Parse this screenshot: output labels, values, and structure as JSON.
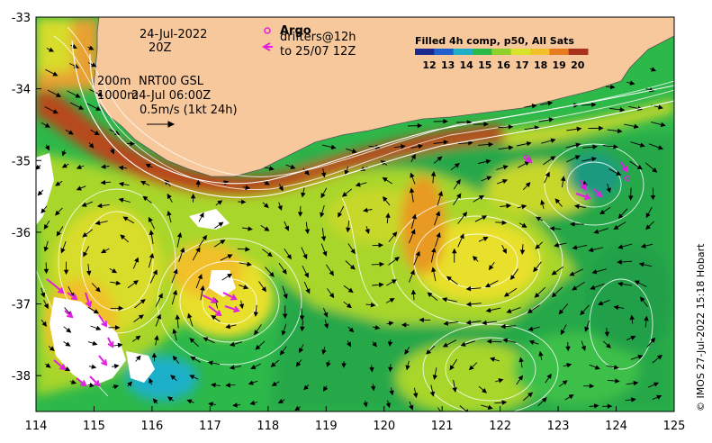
{
  "map": {
    "lon_range": [
      114,
      125
    ],
    "lat_range": [
      -38.5,
      -33
    ],
    "x_ticks": [
      "114",
      "115",
      "116",
      "117",
      "118",
      "119",
      "120",
      "121",
      "122",
      "123",
      "124",
      "125"
    ],
    "y_ticks": [
      "-33",
      "-34",
      "-35",
      "-36",
      "-37",
      "-38"
    ],
    "colors": {
      "land": "#F7C89B",
      "deep_blue": "#1a2a8f",
      "green": "#2db84a",
      "yellow_green": "#a8d62a",
      "yellow": "#f2e22a",
      "orange": "#e89a20",
      "red_brown": "#a8321a",
      "argo_magenta": "#e020e0"
    }
  },
  "annotations": {
    "date": "24-Jul-2022",
    "time": "20Z",
    "depth_200": "200m",
    "nrt": "NRT00 GSL",
    "depth_1000": "1000m",
    "ref_date": "24-Jul 06:00Z",
    "scale": "0.5m/s (1kt 24h)"
  },
  "legend_argo": {
    "title": "Argo",
    "drifters": "drifters@12h",
    "to": "to 25/07 12Z"
  },
  "colorbar": {
    "title": "Filled 4h comp, p50, All Sats",
    "labels": [
      "12",
      "13",
      "14",
      "15",
      "16",
      "17",
      "18",
      "19",
      "20"
    ],
    "colors": [
      "#1a2a8f",
      "#1f5fd0",
      "#1fb0c8",
      "#2db84a",
      "#8fd02a",
      "#d8e22a",
      "#f2c02a",
      "#e87a20",
      "#a8321a"
    ]
  },
  "credit": "© IMOS 27-Jul-2022 15:18 Hobart"
}
